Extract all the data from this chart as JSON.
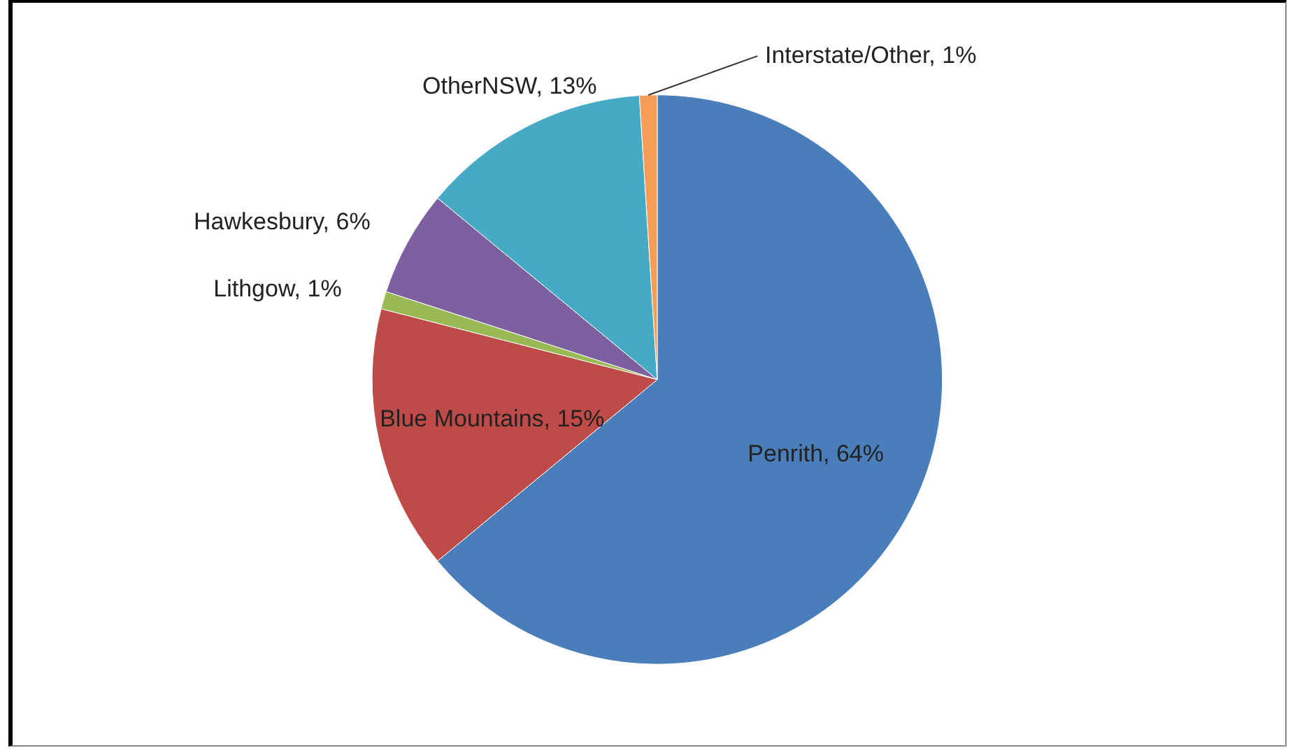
{
  "chart_data": {
    "type": "pie",
    "categories": [
      "Penrith",
      "Blue Mountains",
      "Lithgow",
      "Hawkesbury",
      "OtherNSW",
      "Interstate/Other"
    ],
    "values": [
      64,
      15,
      1,
      6,
      13,
      1
    ],
    "value_labels": [
      "64%",
      "15%",
      "1%",
      "6%",
      "13%",
      "1%"
    ],
    "colors": [
      "#4a7ebb",
      "#be4b48",
      "#98b954",
      "#7d60a0",
      "#46aac5",
      "#f59d56"
    ],
    "legend": false
  }
}
